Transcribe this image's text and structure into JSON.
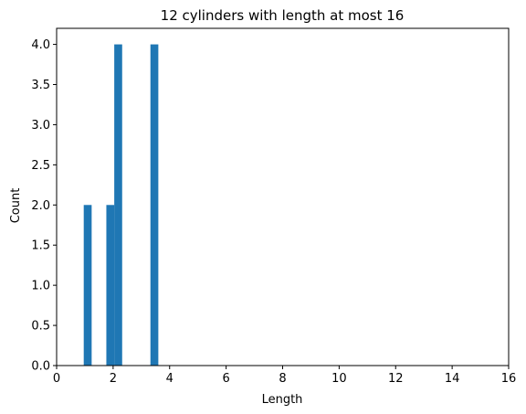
{
  "chart_data": {
    "type": "bar",
    "title": "12 cylinders with length at most 16",
    "xlabel": "Length",
    "ylabel": "Count",
    "xlim": [
      0,
      16
    ],
    "ylim": [
      0,
      4.2
    ],
    "xticks": [
      0,
      2,
      4,
      6,
      8,
      10,
      12,
      14,
      16
    ],
    "yticks": [
      0.0,
      0.5,
      1.0,
      1.5,
      2.0,
      2.5,
      3.0,
      3.5,
      4.0
    ],
    "ytick_labels": [
      "0.0",
      "0.5",
      "1.0",
      "1.5",
      "2.0",
      "2.5",
      "3.0",
      "3.5",
      "4.0"
    ],
    "grid": false,
    "color": "#1f77b4",
    "bins": [
      {
        "x0": 0.96,
        "x1": 1.24,
        "count": 2
      },
      {
        "x0": 1.76,
        "x1": 2.04,
        "count": 2
      },
      {
        "x0": 2.04,
        "x1": 2.32,
        "count": 4
      },
      {
        "x0": 3.32,
        "x1": 3.6,
        "count": 4
      }
    ]
  }
}
